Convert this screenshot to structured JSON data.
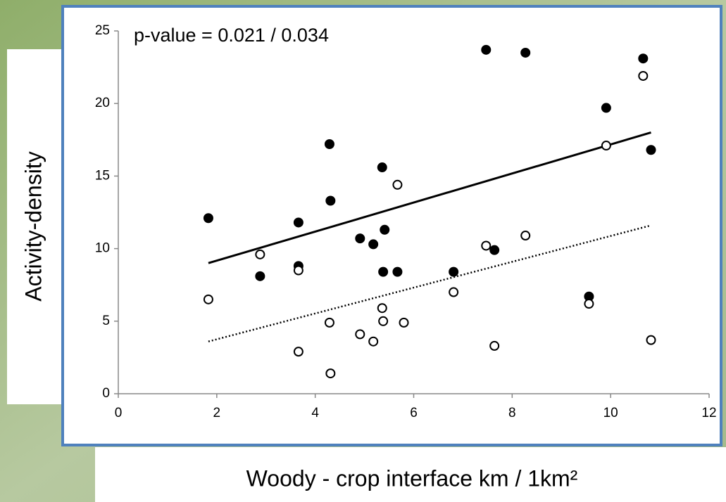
{
  "chart_data": {
    "type": "scatter",
    "annotation": "p-value = 0.021 / 0.034",
    "x_label": "Woody - crop interface km / 1km²",
    "y_label": "Activity-density",
    "xlim": [
      0,
      12
    ],
    "xticks": [
      0,
      2,
      4,
      6,
      8,
      10,
      12
    ],
    "ylim": [
      0,
      25
    ],
    "yticks": [
      0,
      5,
      10,
      15,
      20,
      25
    ],
    "series": [
      {
        "color": "#000000",
        "fill": "#000000",
        "x": [
          1.83,
          2.88,
          3.66,
          3.66,
          4.29,
          4.31,
          4.91,
          5.18,
          5.36,
          5.38,
          5.41,
          5.67,
          6.81,
          7.47,
          7.64,
          8.27,
          9.56,
          9.91,
          10.66,
          10.82
        ],
        "values": [
          12.1,
          8.1,
          11.8,
          8.8,
          17.2,
          13.3,
          10.7,
          10.3,
          15.6,
          8.4,
          11.3,
          8.4,
          8.4,
          23.7,
          9.9,
          23.5,
          6.7,
          19.7,
          23.1,
          16.8
        ]
      },
      {
        "color": "#000000",
        "fill": "#ffffff",
        "x": [
          1.83,
          2.88,
          3.66,
          3.66,
          4.29,
          4.31,
          4.91,
          5.18,
          5.36,
          5.38,
          5.8,
          5.67,
          6.81,
          7.47,
          7.64,
          8.27,
          9.56,
          9.91,
          10.66,
          10.82
        ],
        "values": [
          6.5,
          9.6,
          8.5,
          2.9,
          4.9,
          1.4,
          4.1,
          3.6,
          5.9,
          5.0,
          4.9,
          14.4,
          7.0,
          10.2,
          3.3,
          10.9,
          6.2,
          17.1,
          21.9,
          3.7
        ]
      }
    ],
    "trendlines": [
      {
        "color": "#000000",
        "style": "solid",
        "x": [
          1.83,
          10.82
        ],
        "values": [
          9.0,
          18.0
        ]
      },
      {
        "color": "#000000",
        "style": "dotted",
        "x": [
          1.83,
          10.82
        ],
        "values": [
          3.6,
          11.6
        ]
      }
    ]
  }
}
